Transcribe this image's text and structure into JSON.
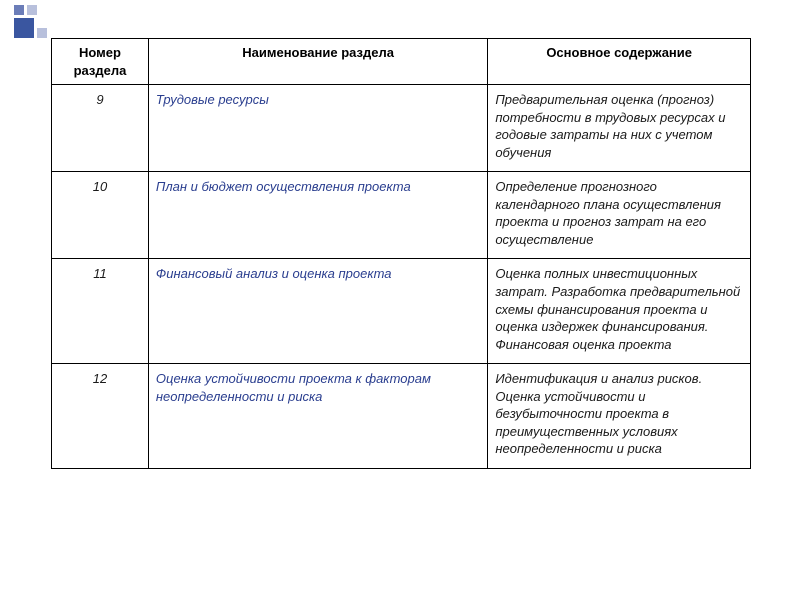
{
  "table": {
    "headers": {
      "num": "Номер раздела",
      "name": "Наименование раздела",
      "content": "Основное содержание"
    },
    "rows": [
      {
        "num": "9",
        "name": "Трудовые ресурсы",
        "content": "Предварительная оценка (прогноз) потребности в трудовых ресурсах и годовые затраты на них с учетом обучения"
      },
      {
        "num": "10",
        "name": "План и бюджет осуществления проекта",
        "content": "Определение прогнозного календарного плана осуществления проекта и прогноз затрат на его осуществление"
      },
      {
        "num": "11",
        "name": "Финансовый анализ и оценка проекта",
        "content": "Оценка полных инвестиционных затрат. Разработка предварительной схемы финансирования проекта и оценка издержек финансирования. Финансовая оценка проекта"
      },
      {
        "num": "12",
        "name": "Оценка устойчивости проекта к факторам неопределенности и риска",
        "content": "Идентификация и анализ рисков. Оценка устойчивости и безубыточности проекта в преимущественных условиях неопределенности и риска"
      }
    ]
  },
  "colors": {
    "name_color": "#2a3e8f",
    "text_color": "#1a1a1a",
    "border_color": "#000000"
  }
}
